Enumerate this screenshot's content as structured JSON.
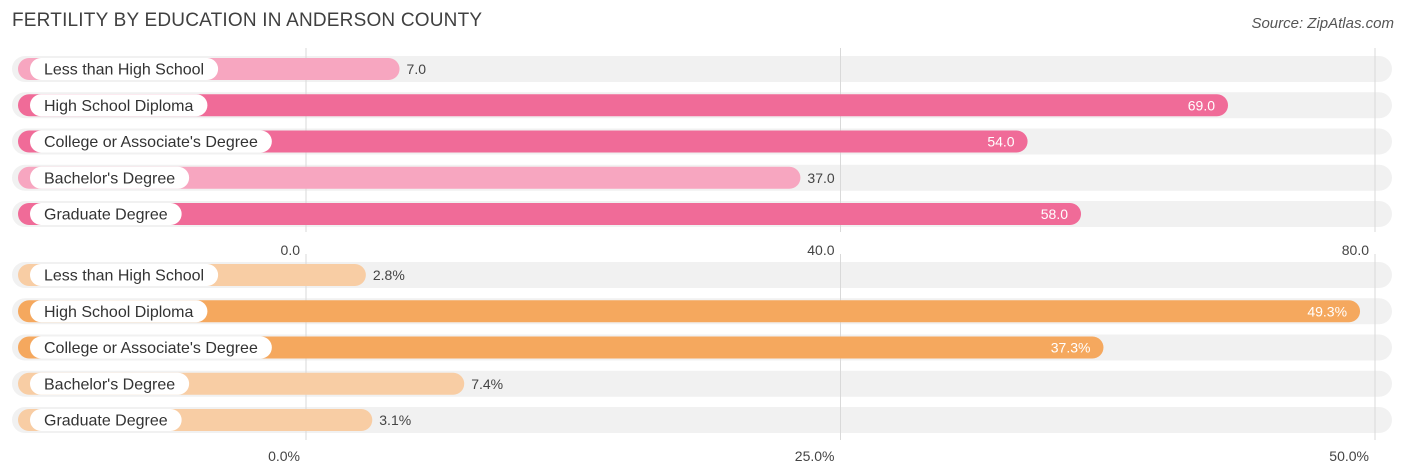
{
  "title": "FERTILITY BY EDUCATION IN ANDERSON COUNTY",
  "source": "Source: ZipAtlas.com",
  "chart_data": [
    {
      "type": "bar",
      "orientation": "horizontal",
      "categories": [
        "Less than High School",
        "High School Diploma",
        "College or Associate's Degree",
        "Bachelor's Degree",
        "Graduate Degree"
      ],
      "values": [
        7.0,
        69.0,
        54.0,
        37.0,
        58.0
      ],
      "value_labels": [
        "7.0",
        "69.0",
        "54.0",
        "37.0",
        "58.0"
      ],
      "xlim": [
        0,
        80
      ],
      "ticks": [
        0,
        40,
        80
      ],
      "tick_labels": [
        "0.0",
        "40.0",
        "80.0"
      ],
      "grid": true,
      "colors": {
        "strong": "#f06b98",
        "light": "#f7a6c0"
      }
    },
    {
      "type": "bar",
      "orientation": "horizontal",
      "categories": [
        "Less than High School",
        "High School Diploma",
        "College or Associate's Degree",
        "Bachelor's Degree",
        "Graduate Degree"
      ],
      "values": [
        2.8,
        49.3,
        37.3,
        7.4,
        3.1
      ],
      "value_labels": [
        "2.8%",
        "49.3%",
        "37.3%",
        "7.4%",
        "3.1%"
      ],
      "xlim": [
        0,
        50
      ],
      "ticks": [
        0,
        25,
        50
      ],
      "tick_labels": [
        "0.0%",
        "25.0%",
        "50.0%"
      ],
      "grid": true,
      "colors": {
        "strong": "#f5a85e",
        "light": "#f8cda4"
      }
    }
  ]
}
